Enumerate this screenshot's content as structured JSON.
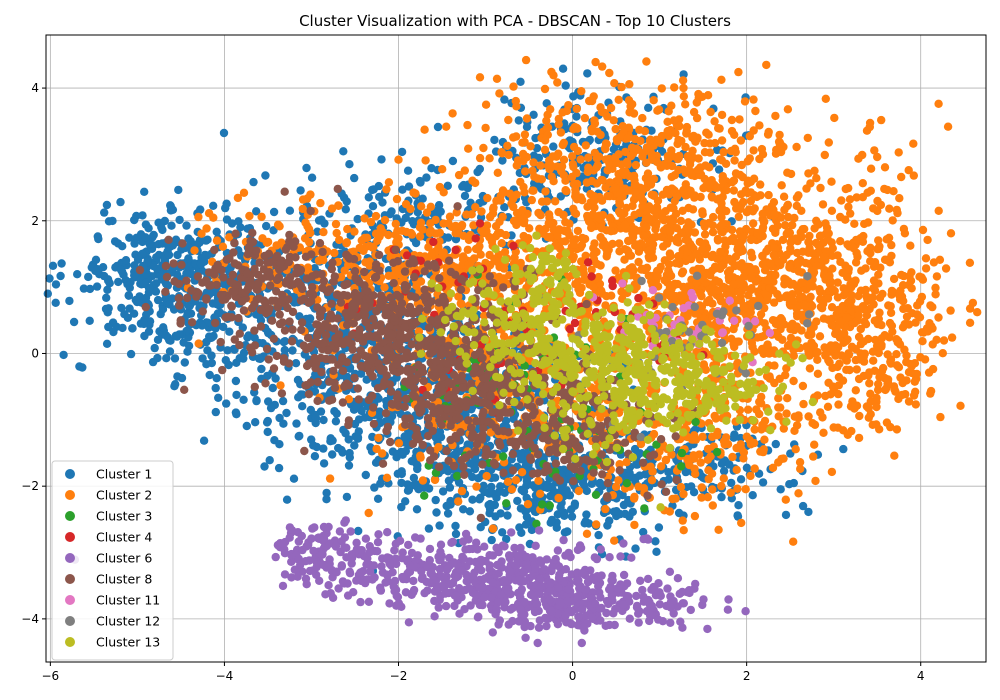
{
  "chart_data": {
    "type": "scatter",
    "title": "Cluster Visualization with PCA - DBSCAN - Top 10 Clusters",
    "xlabel": "",
    "ylabel": "",
    "xlim": [
      -6.05,
      4.75
    ],
    "ylim": [
      -4.65,
      4.8
    ],
    "xticks": [
      -6,
      -4,
      -2,
      0,
      2,
      4
    ],
    "yticks": [
      -4,
      -2,
      0,
      2,
      4
    ],
    "grid": true,
    "legend_position": "lower-left",
    "series": [
      {
        "name": "Cluster 1",
        "color": "#1f77b4",
        "regions": [
          {
            "cx": -4.6,
            "cy": 1.1,
            "sx": 0.55,
            "sy": 0.55,
            "n": 380
          },
          {
            "cx": -2.8,
            "cy": 0.5,
            "sx": 0.9,
            "sy": 0.9,
            "n": 600
          },
          {
            "cx": -1.4,
            "cy": -0.9,
            "sx": 0.8,
            "sy": 0.7,
            "n": 500
          },
          {
            "cx": -0.3,
            "cy": -1.9,
            "sx": 0.7,
            "sy": 0.45,
            "n": 320
          },
          {
            "cx": 0.4,
            "cy": 3.0,
            "sx": 0.7,
            "sy": 0.45,
            "n": 220
          },
          {
            "cx": 1.3,
            "cy": -1.7,
            "sx": 0.6,
            "sy": 0.35,
            "n": 140
          },
          {
            "cx": -1.6,
            "cy": 2.2,
            "sx": 0.5,
            "sy": 0.3,
            "n": 80
          }
        ]
      },
      {
        "name": "Cluster 2",
        "color": "#ff7f0e",
        "regions": [
          {
            "cx": 0.8,
            "cy": 1.6,
            "sx": 1.1,
            "sy": 0.9,
            "n": 950
          },
          {
            "cx": 2.5,
            "cy": 0.8,
            "sx": 0.9,
            "sy": 0.9,
            "n": 750
          },
          {
            "cx": 0.8,
            "cy": 3.0,
            "sx": 0.9,
            "sy": 0.6,
            "n": 300
          },
          {
            "cx": -1.8,
            "cy": 1.4,
            "sx": 1.1,
            "sy": 0.45,
            "n": 420
          },
          {
            "cx": -0.8,
            "cy": -0.6,
            "sx": 0.9,
            "sy": 0.7,
            "n": 300
          },
          {
            "cx": 1.2,
            "cy": -1.3,
            "sx": 0.8,
            "sy": 0.6,
            "n": 220
          },
          {
            "cx": 3.5,
            "cy": 0.2,
            "sx": 0.4,
            "sy": 0.8,
            "n": 160
          }
        ]
      },
      {
        "name": "Cluster 3",
        "color": "#2ca02c",
        "regions": [
          {
            "cx": -0.8,
            "cy": -0.6,
            "sx": 0.8,
            "sy": 0.8,
            "n": 60
          },
          {
            "cx": 0.3,
            "cy": -1.6,
            "sx": 0.6,
            "sy": 0.5,
            "n": 25
          }
        ]
      },
      {
        "name": "Cluster 4",
        "color": "#d62728",
        "regions": [
          {
            "cx": -1.0,
            "cy": 0.6,
            "sx": 0.8,
            "sy": 0.7,
            "n": 55
          },
          {
            "cx": 0.5,
            "cy": 0.3,
            "sx": 0.5,
            "sy": 0.4,
            "n": 25
          }
        ]
      },
      {
        "name": "Cluster 6",
        "color": "#9467bd",
        "regions": [
          {
            "cx": -1.4,
            "cy": -3.3,
            "sx": 0.9,
            "sy": 0.25,
            "n": 380
          },
          {
            "cx": -0.2,
            "cy": -3.7,
            "sx": 0.45,
            "sy": 0.25,
            "n": 260
          },
          {
            "cx": 0.8,
            "cy": -3.75,
            "sx": 0.4,
            "sy": 0.2,
            "n": 90
          },
          {
            "cx": -2.9,
            "cy": -2.9,
            "sx": 0.35,
            "sy": 0.15,
            "n": 70
          }
        ]
      },
      {
        "name": "Cluster 8",
        "color": "#8c564b",
        "regions": [
          {
            "cx": -3.7,
            "cy": 1.1,
            "sx": 0.45,
            "sy": 0.35,
            "n": 170
          },
          {
            "cx": -2.3,
            "cy": 0.4,
            "sx": 0.7,
            "sy": 0.55,
            "n": 420
          },
          {
            "cx": -1.2,
            "cy": -0.4,
            "sx": 0.6,
            "sy": 0.6,
            "n": 360
          },
          {
            "cx": -0.1,
            "cy": -1.2,
            "sx": 0.5,
            "sy": 0.45,
            "n": 180
          }
        ]
      },
      {
        "name": "Cluster 11",
        "color": "#e377c2",
        "regions": [
          {
            "cx": 1.4,
            "cy": 0.35,
            "sx": 0.4,
            "sy": 0.25,
            "n": 40
          }
        ]
      },
      {
        "name": "Cluster 12",
        "color": "#7f7f7f",
        "regions": [
          {
            "cx": 1.2,
            "cy": 0.1,
            "sx": 0.6,
            "sy": 0.5,
            "n": 45
          }
        ]
      },
      {
        "name": "Cluster 13",
        "color": "#bcbd22",
        "regions": [
          {
            "cx": -0.6,
            "cy": 0.4,
            "sx": 0.45,
            "sy": 0.45,
            "n": 180
          },
          {
            "cx": 0.4,
            "cy": -0.3,
            "sx": 0.5,
            "sy": 0.55,
            "n": 260
          },
          {
            "cx": 1.3,
            "cy": -0.4,
            "sx": 0.5,
            "sy": 0.4,
            "n": 220
          },
          {
            "cx": -0.3,
            "cy": 1.3,
            "sx": 0.15,
            "sy": 0.2,
            "n": 40
          }
        ]
      }
    ]
  }
}
